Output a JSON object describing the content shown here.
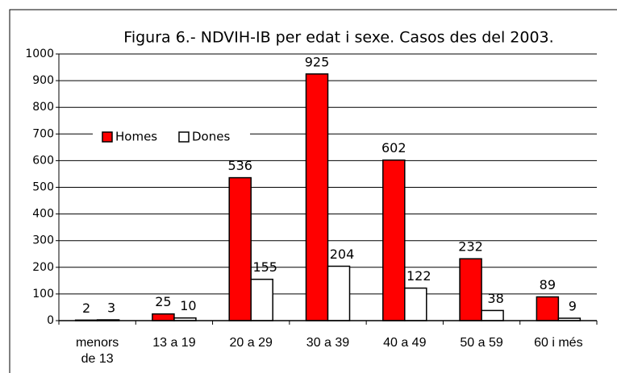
{
  "chart_data": {
    "type": "bar",
    "title": "Figura 6.- NDVIH-IB per edat i sexe. Casos des del 2003.",
    "categories": [
      "menors de 13",
      "13 a 19",
      "20 a 29",
      "30 a 39",
      "40 a 49",
      "50 a 59",
      "60 i més"
    ],
    "series": [
      {
        "name": "Homes",
        "color": "#ff0000",
        "values": [
          2,
          25,
          536,
          925,
          602,
          232,
          89
        ]
      },
      {
        "name": "Dones",
        "color": "#ffffff",
        "values": [
          3,
          10,
          155,
          204,
          122,
          38,
          9
        ]
      }
    ],
    "ylim": [
      0,
      1000
    ],
    "yticks": [
      0,
      100,
      200,
      300,
      400,
      500,
      600,
      700,
      800,
      900,
      1000
    ],
    "grid": true,
    "legend": "upper left"
  }
}
